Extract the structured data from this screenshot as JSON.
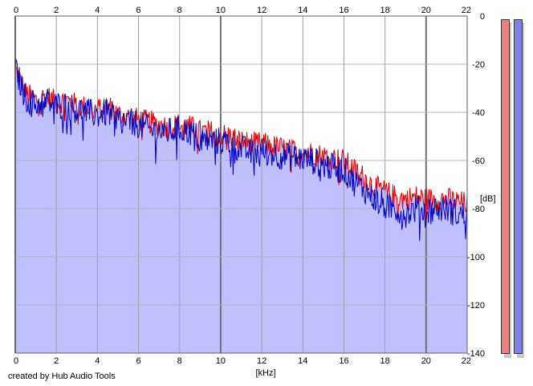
{
  "chart_data": {
    "type": "area",
    "x_unit_label": "[kHz]",
    "y_unit_label": "[dB]",
    "xlim": [
      0,
      22
    ],
    "ylim": [
      -140,
      0
    ],
    "x_ticks": [
      0,
      2,
      4,
      6,
      8,
      10,
      12,
      14,
      16,
      18,
      20,
      22
    ],
    "y_ticks": [
      0,
      -20,
      -40,
      -60,
      -80,
      -100,
      -120,
      -140
    ],
    "grid": true,
    "series": [
      {
        "color": "#e00000",
        "style": "line",
        "x": [
          0,
          0.5,
          1,
          1.5,
          2,
          2.5,
          3,
          3.5,
          4,
          4.5,
          5,
          5.5,
          6,
          6.5,
          7,
          7.5,
          8,
          8.5,
          9,
          9.5,
          10,
          10.5,
          11,
          11.5,
          12,
          12.5,
          13,
          13.5,
          14,
          14.5,
          15,
          15.5,
          16,
          16.5,
          17,
          17.5,
          18,
          18.5,
          19,
          19.5,
          20,
          20.5,
          21,
          21.5,
          22
        ],
        "y": [
          -22,
          -32,
          -35,
          -33,
          -36,
          -35,
          -37,
          -38,
          -39,
          -37,
          -41,
          -42,
          -43,
          -44,
          -45,
          -46,
          -45,
          -46,
          -48,
          -48,
          -49,
          -50,
          -52,
          -53,
          -53,
          -54,
          -55,
          -56,
          -56,
          -57,
          -58,
          -59,
          -60,
          -64,
          -67,
          -71,
          -73,
          -75,
          -76,
          -75,
          -76,
          -76,
          -76,
          -77,
          -78
        ]
      },
      {
        "color": "#0000c0",
        "style": "line",
        "x": [
          0,
          0.5,
          1,
          1.5,
          2,
          2.5,
          3,
          3.5,
          4,
          4.5,
          5,
          5.5,
          6,
          6.5,
          7,
          7.5,
          8,
          8.5,
          9,
          9.5,
          10,
          10.5,
          11,
          11.5,
          12,
          12.5,
          13,
          13.5,
          14,
          14.5,
          15,
          15.5,
          16,
          16.5,
          17,
          17.5,
          18,
          18.5,
          19,
          19.5,
          20,
          20.5,
          21,
          21.5,
          22
        ],
        "y": [
          -22,
          -34,
          -37,
          -35,
          -37,
          -37,
          -39,
          -40,
          -41,
          -40,
          -43,
          -44,
          -45,
          -47,
          -48,
          -48,
          -47,
          -48,
          -51,
          -52,
          -52,
          -53,
          -55,
          -57,
          -56,
          -57,
          -58,
          -59,
          -59,
          -60,
          -62,
          -63,
          -64,
          -69,
          -72,
          -76,
          -79,
          -80,
          -82,
          -80,
          -81,
          -80,
          -80,
          -82,
          -83
        ]
      }
    ],
    "fill_color": "#c0c0ff",
    "meters": [
      {
        "color": "#f08080",
        "level": 1.0
      },
      {
        "color": "#8080f0",
        "level": 1.0
      }
    ]
  },
  "footer": {
    "credit": "created by Hub Audio Tools"
  }
}
